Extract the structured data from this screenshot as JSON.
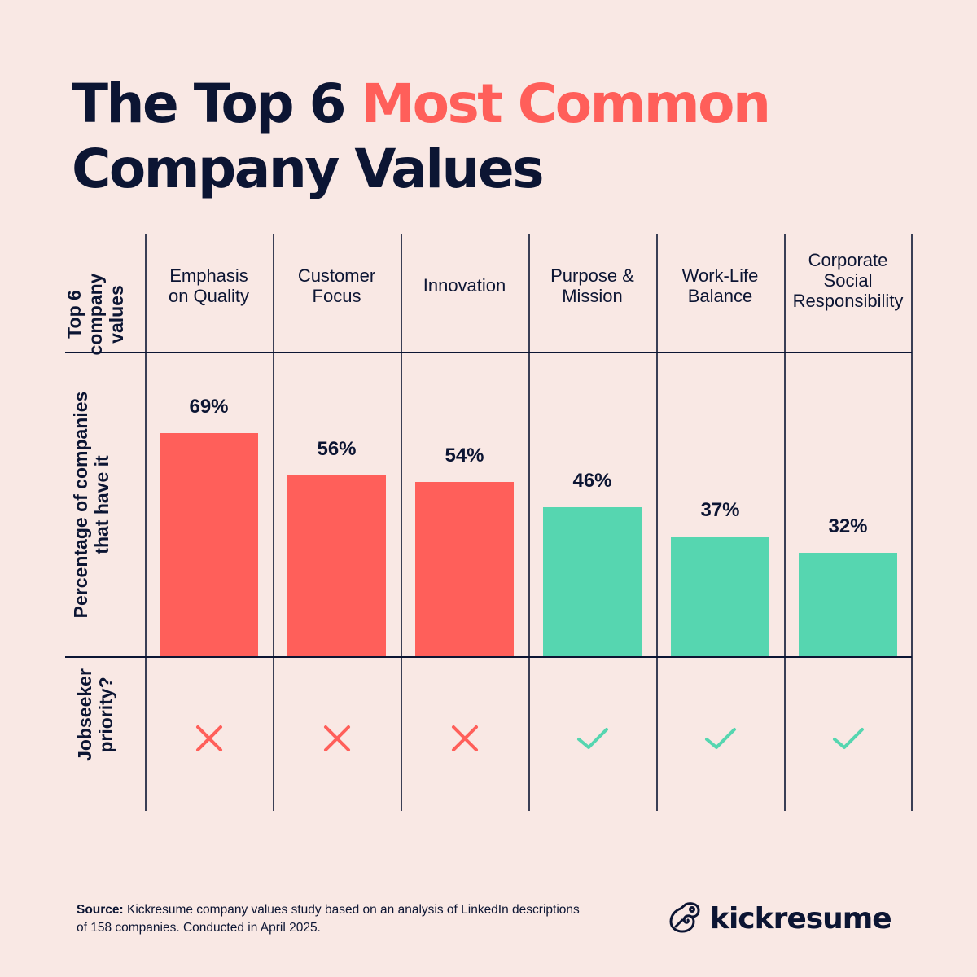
{
  "header": {
    "title_part1": "The Top 6 ",
    "title_accent": "Most Common",
    "title_part2": "Company Values"
  },
  "row_labels": {
    "values": "Top 6 company values",
    "values_lines": [
      "Top 6",
      "company",
      "values"
    ],
    "percentage_lines": [
      "Percentage of companies",
      "that have it"
    ],
    "priority_lines": [
      "Jobseeker",
      "priority?"
    ]
  },
  "columns": [
    {
      "label": "Emphasis on Quality",
      "lines": [
        "Emphasis",
        "on Quality"
      ],
      "value": 69,
      "value_label": "69%",
      "priority": false,
      "priority_icon": "cross-icon"
    },
    {
      "label": "Customer Focus",
      "lines": [
        "Customer",
        "Focus"
      ],
      "value": 56,
      "value_label": "56%",
      "priority": false,
      "priority_icon": "cross-icon"
    },
    {
      "label": "Innovation",
      "lines": [
        "Innovation"
      ],
      "value": 54,
      "value_label": "54%",
      "priority": false,
      "priority_icon": "cross-icon"
    },
    {
      "label": "Purpose & Mission",
      "lines": [
        "Purpose &",
        "Mission"
      ],
      "value": 46,
      "value_label": "46%",
      "priority": true,
      "priority_icon": "check-icon"
    },
    {
      "label": "Work-Life Balance",
      "lines": [
        "Work-Life",
        "Balance"
      ],
      "value": 37,
      "value_label": "37%",
      "priority": true,
      "priority_icon": "check-icon"
    },
    {
      "label": "Corporate Social Responsibility",
      "lines": [
        "Corporate",
        "Social",
        "Responsibility"
      ],
      "value": 32,
      "value_label": "32%",
      "priority": true,
      "priority_icon": "check-icon"
    }
  ],
  "colors": {
    "background": "#f9e8e4",
    "text": "#0c1533",
    "not_priority": "#ff5f5a",
    "priority": "#56d6b0",
    "grid": "#3b3f55"
  },
  "footer": {
    "source_label": "Source:",
    "source_text": " Kickresume company values study based on an analysis of LinkedIn descriptions of 158 companies. Conducted in April 2025.",
    "brand": "kickresume"
  },
  "chart_data": {
    "type": "bar",
    "title": "The Top 6 Most Common Company Values",
    "categories": [
      "Emphasis on Quality",
      "Customer Focus",
      "Innovation",
      "Purpose & Mission",
      "Work-Life Balance",
      "Corporate Social Responsibility"
    ],
    "values": [
      69,
      56,
      54,
      46,
      37,
      32
    ],
    "value_labels": [
      "69%",
      "56%",
      "54%",
      "46%",
      "37%",
      "32%"
    ],
    "jobseeker_priority": [
      false,
      false,
      false,
      true,
      true,
      true
    ],
    "xlabel": "Top 6 company values",
    "ylabel": "Percentage of companies that have it",
    "extra_row_label": "Jobseeker priority?",
    "bar_colors": [
      "#ff5f5a",
      "#ff5f5a",
      "#ff5f5a",
      "#56d6b0",
      "#56d6b0",
      "#56d6b0"
    ],
    "ylim": [
      0,
      100
    ],
    "grid": false,
    "legend": null
  }
}
